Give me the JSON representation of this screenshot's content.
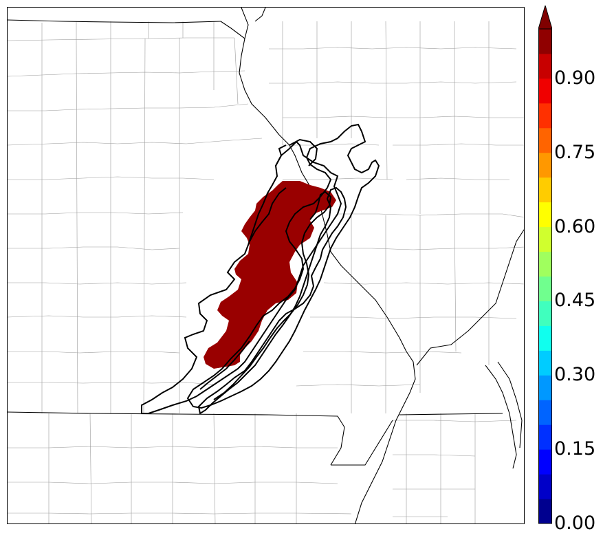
{
  "map": {
    "shaded_color": "#990000",
    "contour_color": "#000000",
    "state_line_color": "#000000",
    "county_line_color": "#9a9a9a"
  },
  "colorbar": {
    "colormap": "jet",
    "levels": [
      0.0,
      0.05,
      0.1,
      0.15,
      0.2,
      0.25,
      0.3,
      0.35,
      0.4,
      0.45,
      0.5,
      0.55,
      0.6,
      0.65,
      0.7,
      0.75,
      0.8,
      0.85,
      0.9,
      0.95,
      1.0
    ],
    "colors": [
      "#00008f",
      "#0000c8",
      "#0000ff",
      "#0030ff",
      "#0064ff",
      "#0098ff",
      "#00ccff",
      "#10ffee",
      "#40ffbe",
      "#70ff8e",
      "#a0ff5e",
      "#d0ff2e",
      "#ffff00",
      "#ffcc00",
      "#ff9800",
      "#ff6400",
      "#ff3000",
      "#f00000",
      "#c80000",
      "#900000"
    ],
    "extend": "max",
    "extend_color": "#800000",
    "tick_labels": [
      "0.00",
      "0.15",
      "0.30",
      "0.45",
      "0.60",
      "0.75",
      "0.90"
    ]
  }
}
